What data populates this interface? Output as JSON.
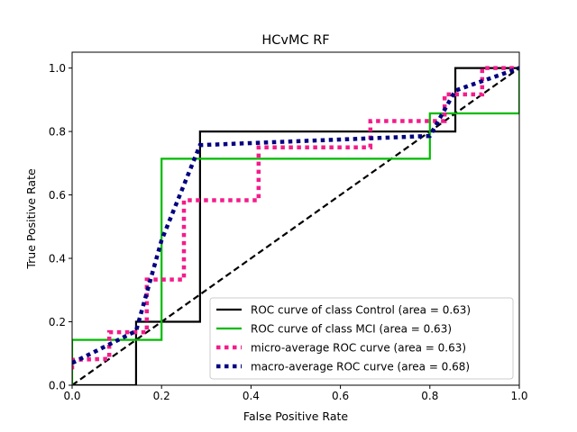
{
  "chart_data": {
    "type": "line",
    "title": "HCvMC RF",
    "xlabel": "False Positive Rate",
    "ylabel": "True Positive Rate",
    "xlim": [
      0.0,
      1.0
    ],
    "ylim": [
      0.0,
      1.05
    ],
    "grid": false,
    "legend_position": "lower-right",
    "x_ticks": [
      0.0,
      0.2,
      0.4,
      0.6,
      0.8,
      1.0
    ],
    "x_tick_labels": [
      "0.0",
      "0.2",
      "0.4",
      "0.6",
      "0.8",
      "1.0"
    ],
    "y_ticks": [
      0.0,
      0.2,
      0.4,
      0.6,
      0.8,
      1.0
    ],
    "y_tick_labels": [
      "0.0",
      "0.2",
      "0.4",
      "0.6",
      "0.8",
      "1.0"
    ],
    "series": [
      {
        "name": "ROC curve of class  Control (area = 0.63)",
        "color": "#000000",
        "style": "solid",
        "points": [
          [
            0,
            0
          ],
          [
            0.143,
            0
          ],
          [
            0.143,
            0.2
          ],
          [
            0.286,
            0.2
          ],
          [
            0.286,
            0.8
          ],
          [
            0.857,
            0.8
          ],
          [
            0.857,
            1.0
          ],
          [
            1.0,
            1.0
          ]
        ]
      },
      {
        "name": "ROC curve of class  MCI (area = 0.63)",
        "color": "#00bb00",
        "style": "solid",
        "points": [
          [
            0,
            0
          ],
          [
            0,
            0.143
          ],
          [
            0.2,
            0.143
          ],
          [
            0.2,
            0.714
          ],
          [
            0.8,
            0.714
          ],
          [
            0.8,
            0.857
          ],
          [
            1.0,
            0.857
          ],
          [
            1.0,
            1.0
          ]
        ]
      },
      {
        "name": "micro-average ROC curve (area = 0.63)",
        "color": "#f41c8a",
        "style": "dotted",
        "points": [
          [
            0,
            0.05
          ],
          [
            0,
            0.08
          ],
          [
            0.083,
            0.083
          ],
          [
            0.083,
            0.167
          ],
          [
            0.167,
            0.167
          ],
          [
            0.167,
            0.333
          ],
          [
            0.25,
            0.333
          ],
          [
            0.25,
            0.583
          ],
          [
            0.417,
            0.583
          ],
          [
            0.417,
            0.75
          ],
          [
            0.667,
            0.75
          ],
          [
            0.667,
            0.833
          ],
          [
            0.833,
            0.833
          ],
          [
            0.833,
            0.917
          ],
          [
            0.917,
            0.917
          ],
          [
            0.917,
            1.0
          ],
          [
            1.0,
            1.0
          ]
        ]
      },
      {
        "name": "macro-average ROC curve (area = 0.68)",
        "color": "#000080",
        "style": "dotted",
        "points": [
          [
            0,
            0.07
          ],
          [
            0.143,
            0.171
          ],
          [
            0.2,
            0.457
          ],
          [
            0.286,
            0.757
          ],
          [
            0.8,
            0.786
          ],
          [
            0.857,
            0.929
          ],
          [
            1.0,
            1.0
          ]
        ]
      },
      {
        "name": "",
        "color": "#000000",
        "style": "dashed",
        "points": [
          [
            0,
            0
          ],
          [
            1,
            1
          ]
        ]
      }
    ]
  }
}
